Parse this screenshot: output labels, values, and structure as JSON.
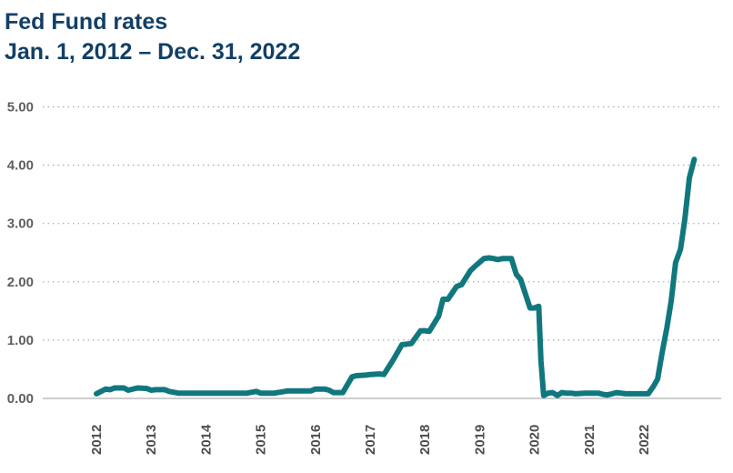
{
  "chart_data": {
    "type": "line",
    "title": "Fed Fund rates",
    "subtitle": "Jan. 1, 2012 – Dec. 31, 2022",
    "xlabel": "",
    "ylabel": "",
    "ylim": [
      0,
      5
    ],
    "yticks": [
      "0.00",
      "1.00",
      "2.00",
      "3.00",
      "4.00",
      "5.00"
    ],
    "xticks": [
      "2012",
      "2013",
      "2014",
      "2015",
      "2016",
      "2017",
      "2018",
      "2019",
      "2020",
      "2021",
      "2022"
    ],
    "grid": "horizontal-dotted",
    "legend": "none",
    "line_color": "#11777e",
    "series": [
      {
        "x": [
          2012.0,
          2012.17,
          2012.25,
          2012.33,
          2012.5,
          2012.58,
          2012.75,
          2012.92,
          2013.0,
          2013.08,
          2013.25,
          2013.33,
          2013.5,
          2013.83,
          2014.0,
          2014.25,
          2014.5,
          2014.75,
          2014.92,
          2015.0,
          2015.25,
          2015.5,
          2015.75,
          2015.92,
          2016.0,
          2016.17,
          2016.25,
          2016.33,
          2016.5,
          2016.67,
          2016.75,
          2016.92,
          2017.0,
          2017.17,
          2017.25,
          2017.42,
          2017.58,
          2017.75,
          2017.92,
          2018.0,
          2018.08,
          2018.25,
          2018.33,
          2018.42,
          2018.58,
          2018.67,
          2018.83,
          2018.92,
          2019.08,
          2019.17,
          2019.25,
          2019.33,
          2019.42,
          2019.58,
          2019.67,
          2019.75,
          2019.92,
          2020.0,
          2020.08,
          2020.12,
          2020.17,
          2020.25,
          2020.33,
          2020.42,
          2020.5,
          2020.58,
          2020.67,
          2020.75,
          2020.92,
          2021.0,
          2021.17,
          2021.25,
          2021.33,
          2021.42,
          2021.5,
          2021.67,
          2021.83,
          2022.0,
          2022.08,
          2022.17,
          2022.25,
          2022.33,
          2022.42,
          2022.5,
          2022.58,
          2022.67,
          2022.75,
          2022.83,
          2022.92
        ],
        "values": [
          0.08,
          0.16,
          0.15,
          0.18,
          0.18,
          0.14,
          0.18,
          0.17,
          0.14,
          0.15,
          0.15,
          0.12,
          0.09,
          0.09,
          0.09,
          0.09,
          0.09,
          0.09,
          0.12,
          0.09,
          0.09,
          0.13,
          0.13,
          0.13,
          0.16,
          0.16,
          0.14,
          0.1,
          0.1,
          0.37,
          0.39,
          0.4,
          0.41,
          0.42,
          0.41,
          0.66,
          0.92,
          0.94,
          1.16,
          1.16,
          1.15,
          1.41,
          1.7,
          1.7,
          1.92,
          1.95,
          2.19,
          2.27,
          2.4,
          2.41,
          2.4,
          2.38,
          2.4,
          2.4,
          2.13,
          2.04,
          1.55,
          1.55,
          1.58,
          0.65,
          0.05,
          0.09,
          0.1,
          0.05,
          0.1,
          0.09,
          0.09,
          0.08,
          0.09,
          0.09,
          0.09,
          0.07,
          0.06,
          0.08,
          0.1,
          0.08,
          0.08,
          0.08,
          0.08,
          0.2,
          0.33,
          0.77,
          1.21,
          1.68,
          2.33,
          2.56,
          3.08,
          3.78,
          4.1
        ]
      }
    ]
  }
}
